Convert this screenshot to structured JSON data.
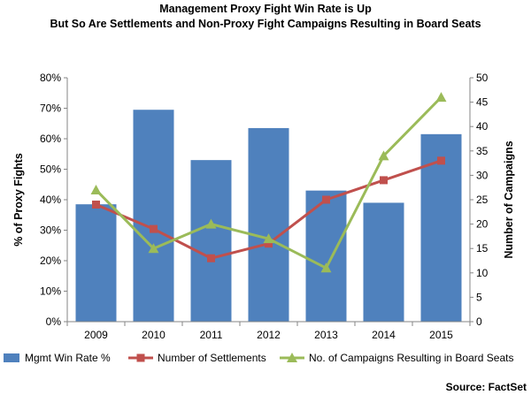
{
  "chart_data": {
    "type": "bar",
    "title": "Management Proxy Fight Win Rate is Up",
    "subtitle": "But So Are Settlements and Non-Proxy Fight Campaigns  Resulting in Board Seats",
    "categories": [
      "2009",
      "2010",
      "2011",
      "2012",
      "2013",
      "2014",
      "2015"
    ],
    "y_left": {
      "label": "% of Proxy Fights",
      "min": 0,
      "max": 80,
      "step": 10,
      "tick_labels": [
        "0%",
        "10%",
        "20%",
        "30%",
        "40%",
        "50%",
        "60%",
        "70%",
        "80%"
      ]
    },
    "y_right": {
      "label": "Number of Campaigns",
      "min": 0,
      "max": 50,
      "step": 5,
      "tick_labels": [
        "0",
        "5",
        "10",
        "15",
        "20",
        "25",
        "30",
        "35",
        "40",
        "45",
        "50"
      ]
    },
    "series": [
      {
        "name": "Mgmt Win Rate %",
        "kind": "bar",
        "axis": "left",
        "color": "#4F81BD",
        "values": [
          38.5,
          69.5,
          53,
          63.5,
          43,
          39,
          61.5
        ]
      },
      {
        "name": "Number of Settlements",
        "kind": "line",
        "axis": "right",
        "marker": "square",
        "color": "#C0504D",
        "values": [
          24,
          19,
          13,
          16,
          25,
          29,
          33
        ]
      },
      {
        "name": "No. of Campaigns Resulting in Board Seats",
        "kind": "line",
        "axis": "right",
        "marker": "triangle",
        "color": "#9BBB59",
        "values": [
          27,
          15,
          20,
          17,
          11,
          34,
          46
        ]
      }
    ],
    "grid": false,
    "legend_position": "bottom",
    "source": "Source: FactSet"
  }
}
